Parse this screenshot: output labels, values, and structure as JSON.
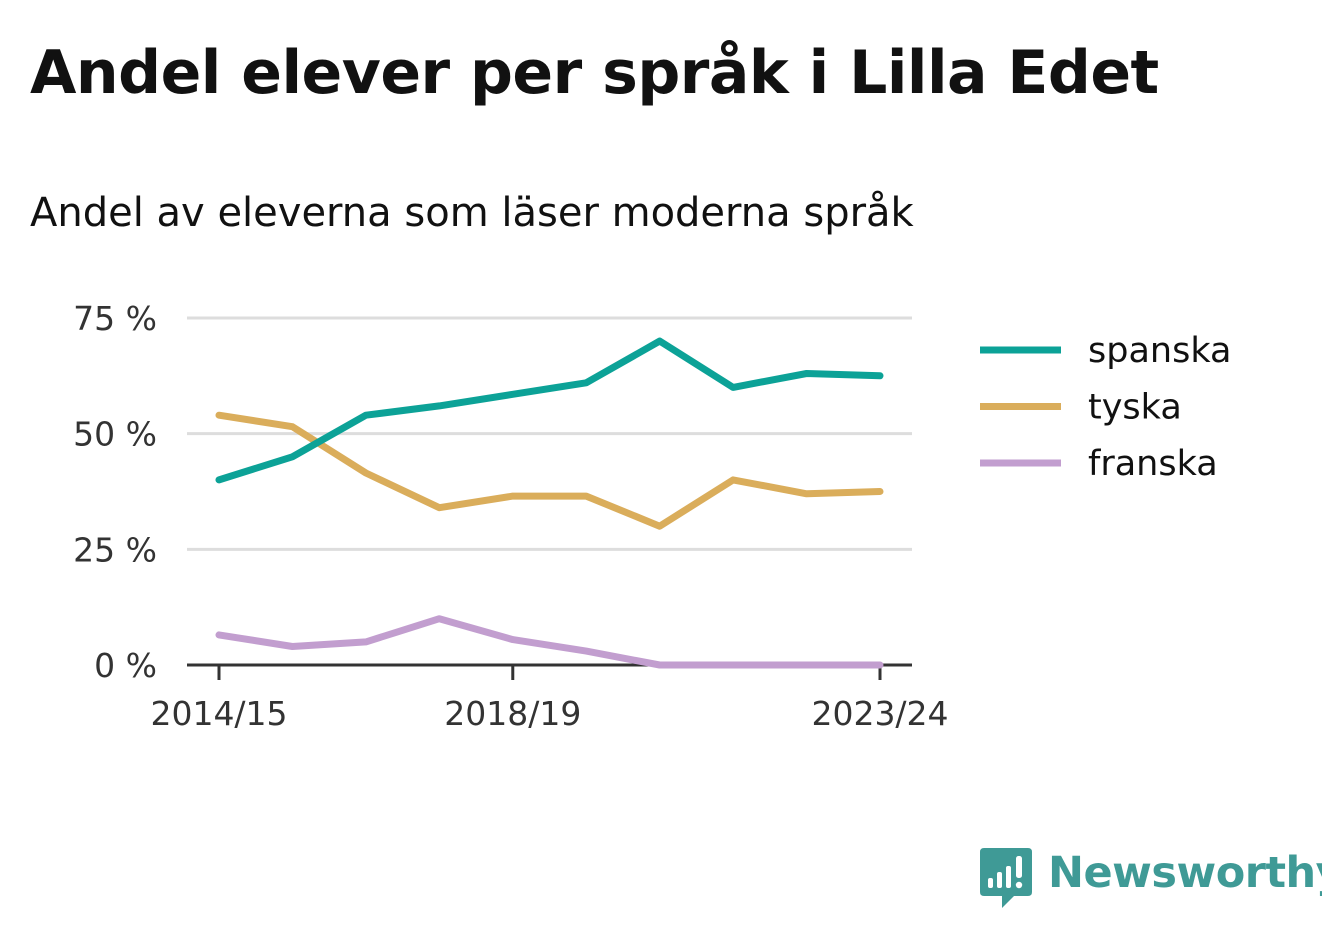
{
  "title": "Andel elever per språk i Lilla Edet",
  "subtitle": "Andel av eleverna som läser moderna språk",
  "brand": {
    "name": "Newsworthy",
    "icon": "newsworthy-logo-icon",
    "color": "#3f9a96"
  },
  "chart_data": {
    "type": "line",
    "x": [
      "2014/15",
      "2015/16",
      "2016/17",
      "2017/18",
      "2018/19",
      "2019/20",
      "2020/21",
      "2021/22",
      "2022/23",
      "2023/24"
    ],
    "x_tick_labels": [
      "2014/15",
      "2018/19",
      "2023/24"
    ],
    "y_ticks": [
      0,
      25,
      50,
      75
    ],
    "y_tick_labels": [
      "0 %",
      "25 %",
      "50 %",
      "75 %"
    ],
    "ylim": [
      0,
      75
    ],
    "grid": true,
    "legend_position": "right",
    "series": [
      {
        "name": "spanska",
        "color": "#0ca297",
        "values": [
          40,
          45,
          54,
          56,
          58.5,
          61,
          70,
          60,
          63,
          62.5
        ]
      },
      {
        "name": "tyska",
        "color": "#daad5b",
        "values": [
          54,
          51.5,
          41.5,
          34,
          36.5,
          36.5,
          30,
          40,
          37,
          37.5
        ]
      },
      {
        "name": "franska",
        "color": "#c29ecf",
        "values": [
          6.5,
          4,
          5,
          10,
          5.5,
          3,
          0,
          0,
          0,
          0
        ]
      }
    ]
  }
}
